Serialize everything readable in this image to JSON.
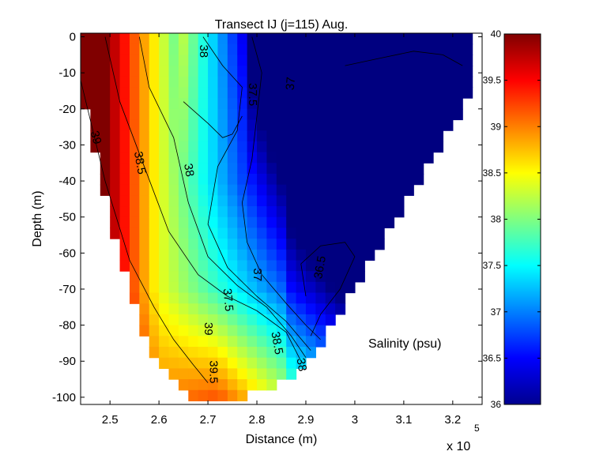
{
  "chart_data": {
    "type": "heatmap",
    "title": "Transect IJ  (j=115)  Aug.",
    "xlabel": "Distance (m)",
    "ylabel": "Depth (m)",
    "x_multiplier_label": "x 10",
    "x_multiplier_exponent": "5",
    "xlim": [
      2.44,
      3.26
    ],
    "ylim": [
      -102,
      1
    ],
    "x_ticks": [
      2.5,
      2.6,
      2.7,
      2.8,
      2.9,
      3.0,
      3.1,
      3.2
    ],
    "x_tick_labels": [
      "2.5",
      "2.6",
      "2.7",
      "2.8",
      "2.9",
      "3",
      "3.1",
      "3.2"
    ],
    "y_ticks": [
      0,
      -10,
      -20,
      -30,
      -40,
      -50,
      -60,
      -70,
      -80,
      -90,
      -100
    ],
    "y_tick_labels": [
      "0",
      "-10",
      "-20",
      "-30",
      "-40",
      "-50",
      "-60",
      "-70",
      "-80",
      "-90",
      "-100"
    ],
    "colorbar": {
      "colormap": "jet",
      "range": [
        36,
        40
      ],
      "ticks": [
        36,
        36.5,
        37,
        37.5,
        38,
        38.5,
        39,
        39.5,
        40
      ],
      "tick_labels": [
        "36",
        "36.5",
        "37",
        "37.5",
        "38",
        "38.5",
        "39",
        "39.5",
        "40"
      ]
    },
    "annotation": "Salinity (psu)",
    "domain_outline": [
      [
        2.44,
        0
      ],
      [
        3.24,
        0
      ],
      [
        3.24,
        -15
      ],
      [
        2.92,
        -88
      ],
      [
        2.84,
        -97
      ],
      [
        2.74,
        -102
      ],
      [
        2.66,
        -100
      ],
      [
        2.58,
        -88
      ],
      [
        2.51,
        -55
      ],
      [
        2.44,
        -15
      ]
    ],
    "contours": [
      {
        "level": "39",
        "points": [
          [
            2.44,
            -12
          ],
          [
            2.49,
            -40
          ],
          [
            2.54,
            -62
          ],
          [
            2.59,
            -75
          ],
          [
            2.63,
            -84
          ],
          [
            2.67,
            -91
          ],
          [
            2.7,
            -96
          ]
        ]
      },
      {
        "level": "38.5",
        "points": [
          [
            2.49,
            0
          ],
          [
            2.52,
            -18
          ],
          [
            2.57,
            -36
          ],
          [
            2.62,
            -54
          ],
          [
            2.68,
            -66
          ],
          [
            2.74,
            -72
          ],
          [
            2.8,
            -76
          ],
          [
            2.86,
            -82
          ],
          [
            2.89,
            -90
          ]
        ]
      },
      {
        "level": "38",
        "points": [
          [
            2.56,
            0
          ],
          [
            2.58,
            -14
          ],
          [
            2.63,
            -28
          ],
          [
            2.66,
            -46
          ],
          [
            2.7,
            -61
          ],
          [
            2.76,
            -69
          ],
          [
            2.82,
            -75
          ],
          [
            2.87,
            -83
          ],
          [
            2.9,
            -89
          ]
        ]
      },
      {
        "level": "37.5",
        "points": [
          [
            2.69,
            0
          ],
          [
            2.73,
            -8
          ],
          [
            2.77,
            -14
          ],
          [
            2.76,
            -26
          ],
          [
            2.72,
            -36
          ],
          [
            2.7,
            -52
          ],
          [
            2.74,
            -64
          ],
          [
            2.8,
            -72
          ],
          [
            2.86,
            -79
          ],
          [
            2.91,
            -87
          ]
        ]
      },
      {
        "level": "38",
        "points": [
          [
            2.65,
            -18
          ],
          [
            2.7,
            -24
          ],
          [
            2.73,
            -28
          ],
          [
            2.75,
            -27
          ],
          [
            2.77,
            -22
          ]
        ]
      },
      {
        "level": "37",
        "points": [
          [
            2.79,
            0
          ],
          [
            2.81,
            -10
          ],
          [
            2.8,
            -22
          ],
          [
            2.79,
            -34
          ],
          [
            2.77,
            -46
          ],
          [
            2.78,
            -57
          ],
          [
            2.81,
            -66
          ],
          [
            2.86,
            -74
          ],
          [
            2.9,
            -80
          ],
          [
            2.93,
            -84
          ]
        ]
      },
      {
        "level": "36.5",
        "points": [
          [
            2.9,
            -72
          ],
          [
            2.89,
            -63
          ],
          [
            2.93,
            -58
          ],
          [
            2.98,
            -57
          ],
          [
            3.0,
            -61
          ],
          [
            2.97,
            -70
          ],
          [
            2.93,
            -77
          ],
          [
            2.91,
            -83
          ]
        ]
      },
      {
        "level": "37",
        "points": [
          [
            2.98,
            -8
          ],
          [
            3.05,
            -6
          ],
          [
            3.12,
            -4
          ],
          [
            3.18,
            -5
          ],
          [
            3.22,
            -8
          ]
        ]
      }
    ],
    "contour_labels": [
      {
        "text": "39",
        "x": 2.47,
        "y": -28,
        "rotate": 75
      },
      {
        "text": "38.5",
        "x": 2.56,
        "y": -35,
        "rotate": 80
      },
      {
        "text": "38",
        "x": 2.66,
        "y": -37,
        "rotate": 80
      },
      {
        "text": "38",
        "x": 2.69,
        "y": -4,
        "rotate": 90
      },
      {
        "text": "37.5",
        "x": 2.79,
        "y": -16,
        "rotate": 90
      },
      {
        "text": "37",
        "x": 2.87,
        "y": -13,
        "rotate": -85
      },
      {
        "text": "37.5",
        "x": 2.74,
        "y": -73,
        "rotate": 85
      },
      {
        "text": "37",
        "x": 2.8,
        "y": -66,
        "rotate": 90
      },
      {
        "text": "36.5",
        "x": 2.93,
        "y": -64,
        "rotate": -80
      },
      {
        "text": "39",
        "x": 2.7,
        "y": -81,
        "rotate": 90
      },
      {
        "text": "38.5",
        "x": 2.84,
        "y": -85,
        "rotate": 80
      },
      {
        "text": "38",
        "x": 2.89,
        "y": -91,
        "rotate": 80
      },
      {
        "text": "39.5",
        "x": 2.71,
        "y": -93,
        "rotate": 90
      }
    ]
  }
}
